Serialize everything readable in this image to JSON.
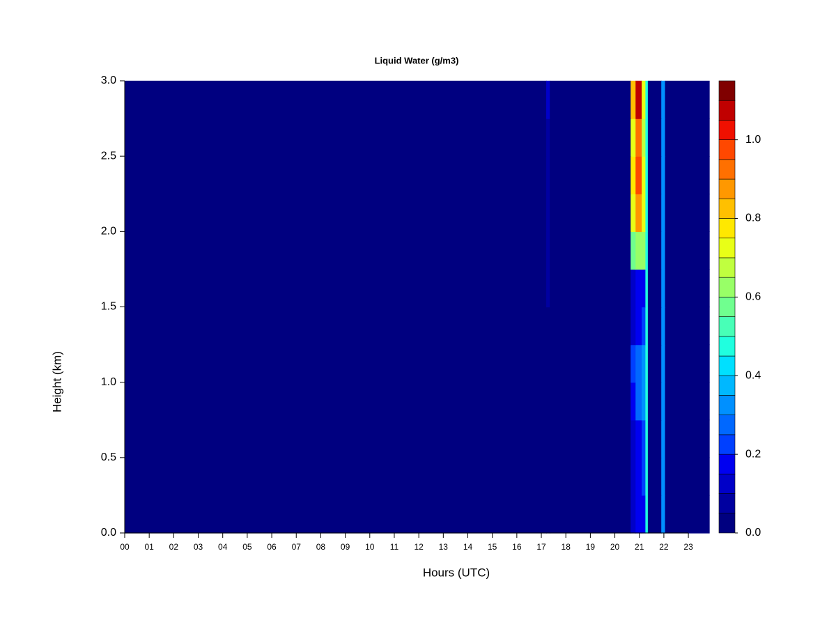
{
  "chart_data": {
    "type": "heatmap",
    "title": "Liquid Water (g/m3)",
    "x_label": "Hours (UTC)",
    "y_label": "Height (km)",
    "xlim": [
      0,
      23.85
    ],
    "ylim": [
      0,
      3
    ],
    "xticks": [
      {
        "value": 0,
        "label": "00"
      },
      {
        "value": 1,
        "label": "01"
      },
      {
        "value": 2,
        "label": "02"
      },
      {
        "value": 3,
        "label": "03"
      },
      {
        "value": 4,
        "label": "04"
      },
      {
        "value": 5,
        "label": "05"
      },
      {
        "value": 6,
        "label": "06"
      },
      {
        "value": 7,
        "label": "07"
      },
      {
        "value": 8,
        "label": "08"
      },
      {
        "value": 9,
        "label": "09"
      },
      10,
      11,
      12,
      13,
      14,
      15,
      16,
      17,
      18,
      19,
      20,
      21,
      22,
      23
    ],
    "yticks": [
      {
        "value": 0,
        "label": "0.0"
      },
      0.5,
      {
        "value": 1,
        "label": "1.0"
      },
      1.5,
      {
        "value": 2,
        "label": "2.0"
      },
      2.5,
      {
        "value": 3,
        "label": "3.0"
      }
    ],
    "xbins": [
      0,
      17.2,
      17.35,
      20.65,
      20.85,
      21.1,
      21.25,
      21.35,
      21.9,
      22.05,
      23.85
    ],
    "ybins": [
      0,
      0.25,
      0.5,
      0.75,
      1,
      1.25,
      1.5,
      1.75,
      2,
      2.25,
      2.5,
      2.75,
      3
    ],
    "values": [
      [
        0,
        0,
        0,
        0.12,
        0.15,
        0.15,
        0.45,
        0,
        0.3,
        0
      ],
      [
        0,
        0,
        0,
        0.12,
        0.15,
        0.2,
        0.45,
        0,
        0.3,
        0
      ],
      [
        0,
        0,
        0,
        0.12,
        0.15,
        0.2,
        0.45,
        0,
        0.3,
        0
      ],
      [
        0,
        0,
        0,
        0.15,
        0.25,
        0.3,
        0.45,
        0,
        0.3,
        0
      ],
      [
        0,
        0,
        0,
        0.2,
        0.25,
        0.3,
        0.45,
        0,
        0.3,
        0
      ],
      [
        0,
        0,
        0,
        0.12,
        0.15,
        0.2,
        0.45,
        0,
        0.3,
        0
      ],
      [
        0,
        0.05,
        0,
        0.12,
        0.15,
        0.15,
        0.45,
        0,
        0.3,
        0
      ],
      [
        0,
        0.05,
        0,
        0.55,
        0.6,
        0.6,
        0.45,
        0,
        0.3,
        0
      ],
      [
        0,
        0.05,
        0,
        0.7,
        0.85,
        0.7,
        0.45,
        0,
        0.3,
        0
      ],
      [
        0,
        0.05,
        0,
        0.75,
        0.95,
        0.7,
        0.45,
        0,
        0.3,
        0
      ],
      [
        0,
        0.08,
        0,
        0.7,
        0.9,
        0.65,
        0.45,
        0,
        0.3,
        0
      ],
      [
        0,
        0.1,
        0,
        0.8,
        1.05,
        0.7,
        0.45,
        0,
        0.3,
        0
      ]
    ],
    "colorbar": {
      "lim": [
        0,
        1.15
      ],
      "ticks": [
        {
          "value": 0,
          "label": "0.0"
        },
        0.2,
        0.4,
        0.6,
        0.8,
        {
          "value": 1,
          "label": "1.0"
        }
      ],
      "colors": [
        "#000080",
        "#0000A0",
        "#0000C8",
        "#0000F0",
        "#0040FF",
        "#0068FF",
        "#0090FF",
        "#00B8FF",
        "#00E0FF",
        "#20FFDF",
        "#48FFB7",
        "#70FF8F",
        "#98FF67",
        "#C0FF3F",
        "#E8FF17",
        "#FFE800",
        "#FFC000",
        "#FF9800",
        "#FF7000",
        "#FF4800",
        "#F01000",
        "#C00000",
        "#800000"
      ]
    }
  }
}
